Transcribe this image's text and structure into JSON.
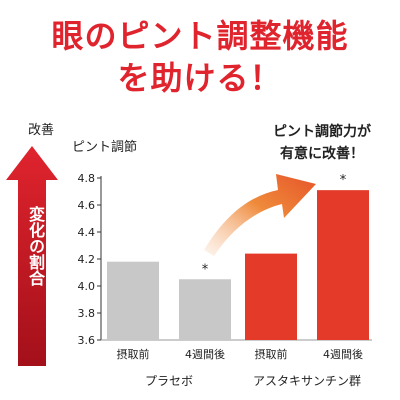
{
  "headline": {
    "line1": "眼のピント調整機能",
    "line2": "を助ける！"
  },
  "axis": {
    "improve_label": "改善",
    "ylabel": "ピント調節",
    "side_label": "変化の割合"
  },
  "callout": {
    "line1": "ピント調節力が",
    "line2": "有意に改善！"
  },
  "colors": {
    "accent": "#e0242e",
    "placebo_bar": "#c8c8c8",
    "astaxanthin_bar": "#e33a2a"
  },
  "chart_data": {
    "type": "bar",
    "ylabel": "ピント調節",
    "ylim": [
      3.6,
      4.8
    ],
    "yticks": [
      3.6,
      3.8,
      4.0,
      4.2,
      4.4,
      4.6,
      4.8
    ],
    "grid": false,
    "groups": [
      {
        "name": "プラセボ",
        "bars": [
          {
            "label": "摂取前",
            "value": 4.18,
            "annotation": ""
          },
          {
            "label": "4週間後",
            "value": 4.05,
            "annotation": "*"
          }
        ]
      },
      {
        "name": "アスタキサンチン群",
        "bars": [
          {
            "label": "摂取前",
            "value": 4.24,
            "annotation": ""
          },
          {
            "label": "4週間後",
            "value": 4.71,
            "annotation": "*"
          }
        ]
      }
    ]
  }
}
